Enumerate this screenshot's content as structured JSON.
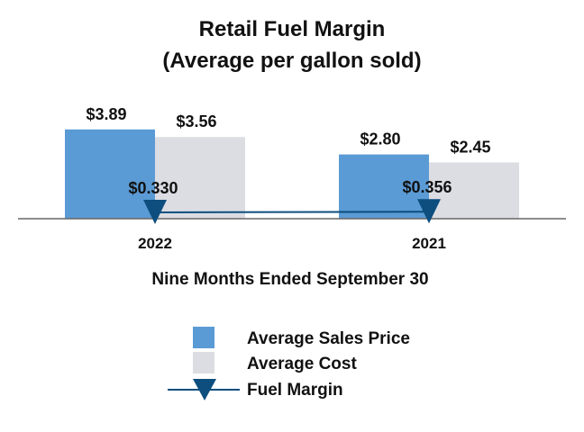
{
  "chart_data": {
    "type": "bar",
    "title": "Retail Fuel Margin",
    "subtitle": "(Average per gallon sold)",
    "xlabel": "Nine Months Ended September 30",
    "categories": [
      "2022",
      "2021"
    ],
    "series": [
      {
        "name": "Average Sales Price",
        "kind": "bar",
        "color": "#5b9bd5",
        "values": [
          3.89,
          2.8
        ],
        "labels": [
          "$3.89",
          "$2.80"
        ]
      },
      {
        "name": "Average Cost",
        "kind": "bar",
        "color": "#dcdde3",
        "values": [
          3.56,
          2.45
        ],
        "labels": [
          "$3.56",
          "$2.45"
        ]
      },
      {
        "name": "Fuel Margin",
        "kind": "line",
        "marker": "triangle-down",
        "color": "#0d4e7f",
        "values": [
          0.33,
          0.356
        ],
        "labels": [
          "$0.330",
          "$0.356"
        ]
      }
    ],
    "legend": "bottom",
    "grid": false
  }
}
